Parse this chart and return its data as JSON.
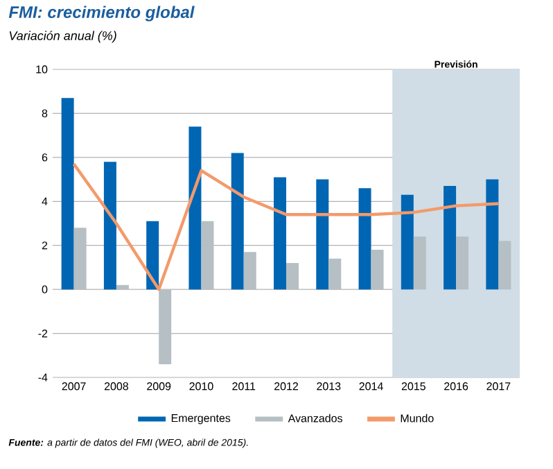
{
  "chart_data": {
    "type": "bar",
    "title": "FMI: crecimiento global",
    "subtitle": "Variación anual (%)",
    "categories": [
      "2007",
      "2008",
      "2009",
      "2010",
      "2011",
      "2012",
      "2013",
      "2014",
      "2015",
      "2016",
      "2017"
    ],
    "series": [
      {
        "name": "Emergentes",
        "color": "#0066b3",
        "values": [
          8.7,
          5.8,
          3.1,
          7.4,
          6.2,
          5.1,
          5.0,
          4.6,
          4.3,
          4.7,
          5.0
        ]
      },
      {
        "name": "Avanzados",
        "color": "#b5bfc4",
        "values": [
          2.8,
          0.2,
          -3.4,
          3.1,
          1.7,
          1.2,
          1.4,
          1.8,
          2.4,
          2.4,
          2.2
        ]
      },
      {
        "name": "Mundo",
        "type": "line",
        "color": "#f39a6b",
        "values": [
          5.7,
          3.0,
          0.0,
          5.4,
          4.2,
          3.4,
          3.4,
          3.4,
          3.5,
          3.8,
          3.9
        ]
      }
    ],
    "ylim": [
      -4,
      10
    ],
    "yticks": [
      -4,
      -2,
      0,
      2,
      4,
      6,
      8,
      10
    ],
    "grid": "y",
    "legend": "bottom",
    "bands": [
      {
        "axis": "x",
        "from": "2015",
        "to": "2017",
        "label": "Previsión",
        "color": "#d0dde6"
      }
    ],
    "annotations": [
      "**Fuente:** a partir de datos del FMI (WEO, abril de 2015)."
    ]
  }
}
